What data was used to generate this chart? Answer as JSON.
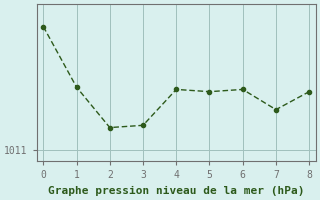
{
  "x": [
    0,
    1,
    2,
    3,
    4,
    5,
    6,
    7,
    8
  ],
  "y": [
    1016.5,
    1013.8,
    1012.0,
    1012.1,
    1013.7,
    1013.6,
    1013.7,
    1012.8,
    1013.6
  ],
  "line_color": "#2d5a1b",
  "marker_color": "#2d5a1b",
  "background_color": "#d9f0ee",
  "grid_color": "#a0c0bc",
  "axis_color": "#707070",
  "xlabel": "Graphe pression niveau de la mer (hPa)",
  "xlabel_color": "#2d5a1b",
  "tick_label_color": "#2d5a1b",
  "ytick_label": "1011",
  "ytick_value": 1011,
  "xlim": [
    -0.2,
    8.2
  ],
  "ylim": [
    1010.5,
    1017.5
  ],
  "xlabel_fontsize": 8,
  "tick_fontsize": 7,
  "figsize": [
    3.2,
    2.0
  ],
  "dpi": 100
}
